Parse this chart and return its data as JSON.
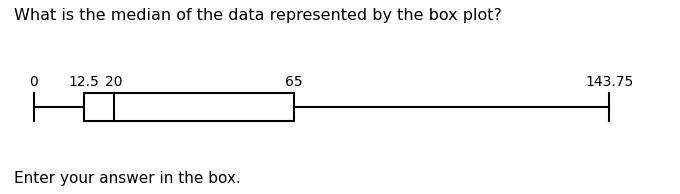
{
  "title": "What is the median of the data represented by the box plot?",
  "footer": "Enter your answer in the box.",
  "min": 0,
  "q1": 12.5,
  "median": 20,
  "q3": 65,
  "max": 143.75,
  "box_color": "white",
  "box_edgecolor": "black",
  "line_color": "black",
  "title_fontsize": 11.5,
  "footer_fontsize": 11,
  "label_fontsize": 10,
  "background_color": "white"
}
